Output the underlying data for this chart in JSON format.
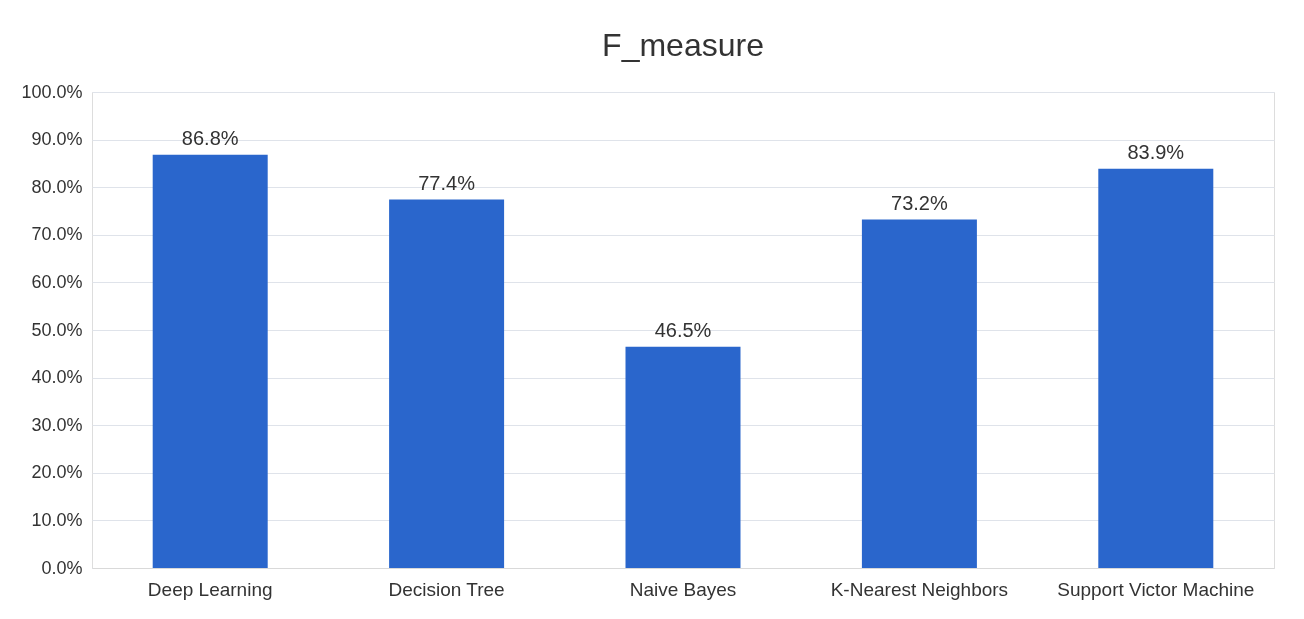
{
  "chart_data": {
    "type": "bar",
    "title": "F_measure",
    "categories": [
      "Deep Learning",
      "Decision Tree",
      "Naive Bayes",
      "K-Nearest Neighbors",
      "Support Victor Machine"
    ],
    "values": [
      86.8,
      77.4,
      46.5,
      73.2,
      83.9
    ],
    "value_labels": [
      "86.8%",
      "77.4%",
      "46.5%",
      "73.2%",
      "83.9%"
    ],
    "color": "#2a66cc",
    "ylim": [
      0,
      100
    ],
    "yticks": [
      {
        "value": 0,
        "label": "0.0%"
      },
      {
        "value": 10,
        "label": "10.0%"
      },
      {
        "value": 20,
        "label": "20.0%"
      },
      {
        "value": 30,
        "label": "30.0%"
      },
      {
        "value": 40,
        "label": "40.0%"
      },
      {
        "value": 50,
        "label": "50.0%"
      },
      {
        "value": 60,
        "label": "60.0%"
      },
      {
        "value": 70,
        "label": "70.0%"
      },
      {
        "value": 80,
        "label": "80.0%"
      },
      {
        "value": 90,
        "label": "90.0%"
      },
      {
        "value": 100,
        "label": "100.0%"
      }
    ],
    "grid": "y"
  }
}
